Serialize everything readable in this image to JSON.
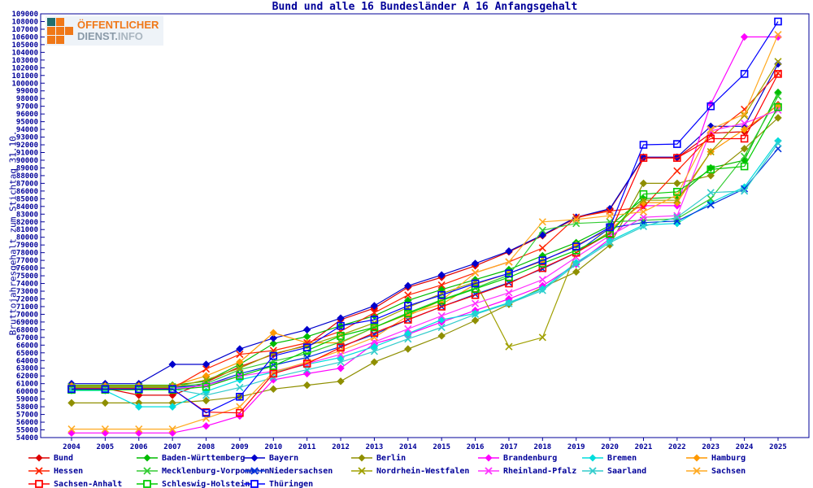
{
  "title": "Bund und alle 16 Bundesländer A 16 Anfangsgehalt",
  "logo": {
    "line1": "ÖFFENTLICHER",
    "line2": "DIENST.",
    "line3": "INFO"
  },
  "axis_color": "#000099",
  "chart_data": {
    "type": "line",
    "title": "Bund und alle 16 Bundesländer A 16 Anfangsgehalt",
    "ylabel": "Bruttojahresgehalt zum Stichtag 31.10.",
    "xlabel": "",
    "ylim": [
      54000,
      109000
    ],
    "ytick_step": 1000,
    "grid": false,
    "legend_position": "bottom",
    "x": [
      2004,
      2005,
      2006,
      2007,
      2008,
      2009,
      2010,
      2011,
      2012,
      2013,
      2014,
      2015,
      2016,
      2017,
      2018,
      2019,
      2020,
      2021,
      2022,
      2023,
      2024,
      2025
    ],
    "series": [
      {
        "name": "Bund",
        "color": "#dd0000",
        "marker": "diamond",
        "values": [
          60400,
          60400,
          59500,
          59500,
          61200,
          63200,
          64800,
          66000,
          69300,
          70800,
          73500,
          74800,
          76300,
          78100,
          80200,
          82500,
          83600,
          90300,
          90300,
          93500,
          93700,
          97200
        ]
      },
      {
        "name": "Baden-Württemberg",
        "color": "#00bb00",
        "marker": "diamond",
        "values": [
          60800,
          60800,
          60800,
          60800,
          61300,
          63500,
          66200,
          67100,
          68500,
          69800,
          71800,
          73200,
          74500,
          75800,
          77600,
          79300,
          81500,
          85000,
          85200,
          89000,
          90000,
          98800
        ]
      },
      {
        "name": "Bayern",
        "color": "#0000cc",
        "marker": "diamond",
        "values": [
          61000,
          61000,
          61000,
          63500,
          63500,
          65500,
          66900,
          68000,
          69500,
          71100,
          73700,
          75100,
          76600,
          78200,
          80300,
          82600,
          83700,
          90400,
          90400,
          94400,
          94400,
          102500
        ]
      },
      {
        "name": "Berlin",
        "color": "#8f8f00",
        "marker": "diamond",
        "values": [
          58500,
          58500,
          58500,
          58500,
          58800,
          59300,
          60300,
          60800,
          61300,
          63800,
          65500,
          67200,
          69200,
          71300,
          73500,
          75500,
          79000,
          87000,
          87000,
          88000,
          91500,
          95500
        ]
      },
      {
        "name": "Brandenburg",
        "color": "#ff00ff",
        "marker": "diamond",
        "values": [
          54600,
          54600,
          54600,
          54600,
          55500,
          56800,
          61500,
          62300,
          63000,
          66200,
          67400,
          69000,
          70500,
          72000,
          73700,
          76500,
          79800,
          84100,
          84100,
          97300,
          106000,
          106000
        ]
      },
      {
        "name": "Bremen",
        "color": "#00dddd",
        "marker": "diamond",
        "values": [
          60100,
          60100,
          58000,
          58000,
          60000,
          61500,
          62500,
          63500,
          64400,
          65800,
          67500,
          69300,
          70100,
          71500,
          73300,
          76700,
          79500,
          81600,
          81800,
          84500,
          86500,
          92500
        ]
      },
      {
        "name": "Hamburg",
        "color": "#ff9900",
        "marker": "diamond",
        "values": [
          60700,
          60700,
          60700,
          60700,
          62000,
          63800,
          67600,
          66300,
          66300,
          68300,
          70000,
          71300,
          73900,
          75300,
          76900,
          79000,
          81000,
          84500,
          84500,
          91100,
          94000,
          97100
        ]
      },
      {
        "name": "Hessen",
        "color": "#ff2200",
        "marker": "x",
        "values": [
          60400,
          60400,
          60400,
          60400,
          62900,
          64800,
          65300,
          66300,
          67800,
          70200,
          72500,
          73800,
          75400,
          76800,
          78600,
          82600,
          83400,
          83900,
          88600,
          93200,
          96600,
          101300
        ]
      },
      {
        "name": "Mecklenburg-Vorpommern",
        "color": "#33cc33",
        "marker": "x",
        "values": [
          60600,
          60600,
          60600,
          60600,
          61000,
          62800,
          63900,
          64900,
          66400,
          68300,
          70200,
          71900,
          73400,
          75100,
          80900,
          81800,
          82000,
          82200,
          82400,
          85000,
          90500,
          98300
        ]
      },
      {
        "name": "Niedersachsen",
        "color": "#0033dd",
        "marker": "x",
        "values": [
          60500,
          60500,
          60500,
          60500,
          60800,
          62300,
          63400,
          64400,
          65800,
          67400,
          69300,
          71000,
          72600,
          74100,
          75900,
          78000,
          81200,
          81900,
          82100,
          84200,
          86300,
          91500
        ]
      },
      {
        "name": "Nordrhein-Westfalen",
        "color": "#a0a000",
        "marker": "x",
        "values": [
          60500,
          60500,
          60500,
          60500,
          61500,
          63000,
          64900,
          65900,
          67300,
          68900,
          70900,
          72700,
          74200,
          65800,
          67000,
          78000,
          80700,
          84800,
          84800,
          91100,
          95800,
          102800
        ]
      },
      {
        "name": "Rheinland-Pfalz",
        "color": "#ff33ff",
        "marker": "x",
        "values": [
          60300,
          60300,
          60300,
          60300,
          60800,
          62000,
          62600,
          63600,
          64800,
          66400,
          68100,
          69800,
          71400,
          72800,
          74500,
          77400,
          80200,
          82600,
          82800,
          93800,
          94800,
          96500
        ]
      },
      {
        "name": "Saarland",
        "color": "#33cccc",
        "marker": "x",
        "values": [
          60300,
          60300,
          60300,
          60300,
          59500,
          60500,
          61800,
          62800,
          63800,
          65200,
          66800,
          68300,
          70000,
          71400,
          73100,
          76500,
          79300,
          81400,
          82600,
          85800,
          86000,
          92200
        ]
      },
      {
        "name": "Sachsen",
        "color": "#ffaa22",
        "marker": "x",
        "values": [
          55100,
          55100,
          55100,
          55100,
          56500,
          58000,
          62500,
          63800,
          65300,
          67000,
          69800,
          71800,
          75400,
          76800,
          82000,
          82300,
          82800,
          83300,
          85500,
          94000,
          96000,
          106300
        ]
      },
      {
        "name": "Sachsen-Anhalt",
        "color": "#ff0000",
        "marker": "square",
        "values": [
          60300,
          60300,
          60300,
          60300,
          57300,
          57200,
          62300,
          63600,
          65700,
          67600,
          69300,
          71000,
          72500,
          74000,
          76000,
          78000,
          80500,
          90300,
          90300,
          92800,
          92800,
          101200
        ]
      },
      {
        "name": "Schleswig-Holstein",
        "color": "#00cc00",
        "marker": "square",
        "values": [
          60200,
          60200,
          60200,
          60200,
          60600,
          62000,
          63300,
          65300,
          67200,
          68300,
          70100,
          71800,
          73300,
          74800,
          76600,
          78300,
          80400,
          85600,
          85900,
          88800,
          89200,
          96900
        ]
      },
      {
        "name": "Thüringen",
        "color": "#0000ff",
        "marker": "square",
        "values": [
          60300,
          60300,
          60300,
          60300,
          57200,
          59300,
          64600,
          65700,
          68500,
          69300,
          71100,
          72500,
          74000,
          75300,
          77000,
          78800,
          81300,
          92000,
          92100,
          97000,
          101200,
          108000
        ]
      }
    ],
    "legend_rows": [
      [
        "Bund",
        "Baden-Württemberg",
        "Bayern",
        "Berlin",
        "Brandenburg",
        "Bremen",
        "Hamburg"
      ],
      [
        "Hessen",
        "Mecklenburg-Vorpommern",
        "Niedersachsen",
        "Nordrhein-Westfalen",
        "Rheinland-Pfalz",
        "Saarland",
        "Sachsen"
      ],
      [
        "Sachsen-Anhalt",
        "Schleswig-Holstein",
        "Thüringen"
      ]
    ]
  }
}
